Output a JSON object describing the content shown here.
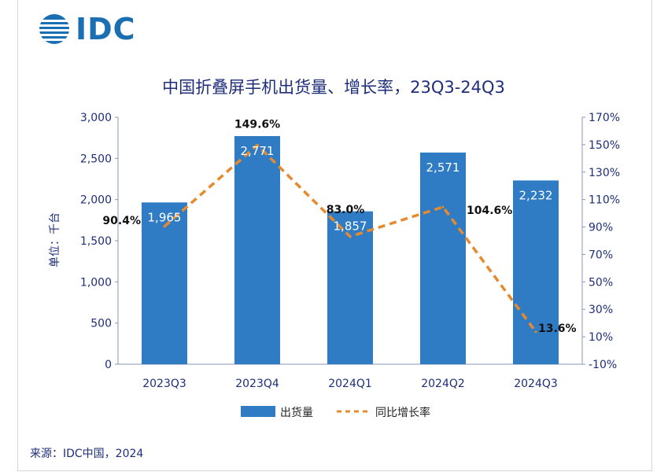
{
  "logo": {
    "text": "IDC"
  },
  "source": "来源：IDC中国，2024",
  "chart_data": {
    "type": "bar+line",
    "title": "中国折叠屏手机出货量、增长率，23Q3-24Q3",
    "ylabel": "单位：千台",
    "categories": [
      "2023Q3",
      "2023Q4",
      "2024Q1",
      "2024Q2",
      "2024Q3"
    ],
    "series": [
      {
        "name": "出货量",
        "type": "bar",
        "axis": "left",
        "values": [
          1965,
          2771,
          1857,
          2571,
          2232
        ],
        "labels": [
          "1,965",
          "2,771",
          "1,857",
          "2,571",
          "2,232"
        ],
        "color": "#2f7bc4"
      },
      {
        "name": "同比增长率",
        "type": "line",
        "axis": "right",
        "style": "dashed",
        "values": [
          90.4,
          149.6,
          83.0,
          104.6,
          13.6
        ],
        "labels": [
          "90.4%",
          "149.6%",
          "83.0%",
          "104.6%",
          "13.6%"
        ],
        "color": "#e58a2e"
      }
    ],
    "left_axis": {
      "min": 0,
      "max": 3000,
      "ticks": [
        0,
        500,
        1000,
        1500,
        2000,
        2500,
        3000
      ],
      "tick_labels": [
        "0",
        "500",
        "1,000",
        "1,500",
        "2,000",
        "2,500",
        "3,000"
      ]
    },
    "right_axis": {
      "min": -10,
      "max": 170,
      "ticks": [
        -10,
        10,
        30,
        50,
        70,
        90,
        110,
        130,
        150,
        170
      ],
      "tick_labels": [
        "-10%",
        "10%",
        "30%",
        "50%",
        "70%",
        "90%",
        "110%",
        "130%",
        "150%",
        "170%"
      ]
    },
    "legend": {
      "position": "bottom",
      "items": [
        "出货量",
        "同比增长率"
      ]
    },
    "grid": false
  }
}
